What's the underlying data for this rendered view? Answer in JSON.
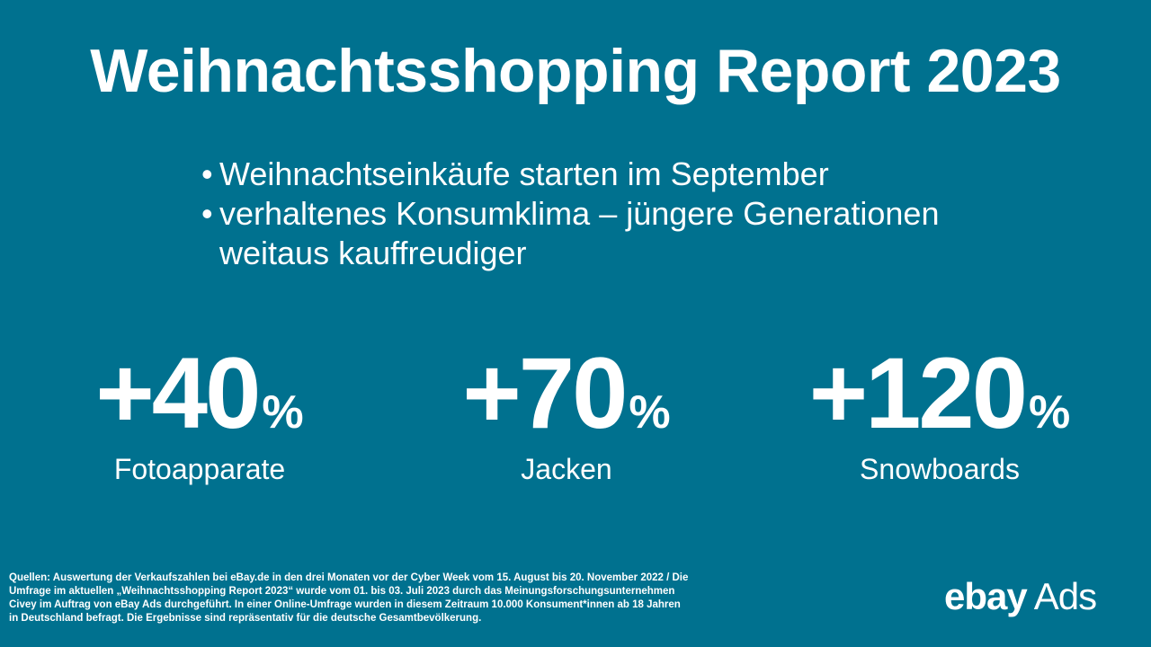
{
  "title": "Weihnachtsshopping Report 2023",
  "bullets": [
    "Weihnachtseinkäufe starten im September",
    "verhaltenes Konsumklima – jüngere Generationen weitaus kauffreudiger"
  ],
  "stats": [
    {
      "value": "+40",
      "unit": "%",
      "label": "Fotoapparate"
    },
    {
      "value": "+70",
      "unit": "%",
      "label": "Jacken"
    },
    {
      "value": "+120",
      "unit": "%",
      "label": "Snowboards"
    }
  ],
  "sources": "Quellen: Auswertung der Verkaufszahlen bei eBay.de in den drei Monaten vor der Cyber Week vom 15. August bis 20. November 2022 / Die Umfrage im aktuellen „Weihnachtsshopping Report 2023“ wurde vom 01. bis 03. Juli 2023 durch das Meinungsforschungsunternehmen Civey im Auftrag von eBay Ads durchgeführt. In einer Online-Umfrage wurden in diesem Zeitraum 10.000 Konsument*innen ab 18 Jahren in Deutschland befragt. Die Ergebnisse sind repräsentativ für die deutsche Gesamtbevölkerung.",
  "logo": {
    "brand": "ebay",
    "suffix": "Ads"
  },
  "colors": {
    "background": "#00718f",
    "text": "#ffffff"
  }
}
